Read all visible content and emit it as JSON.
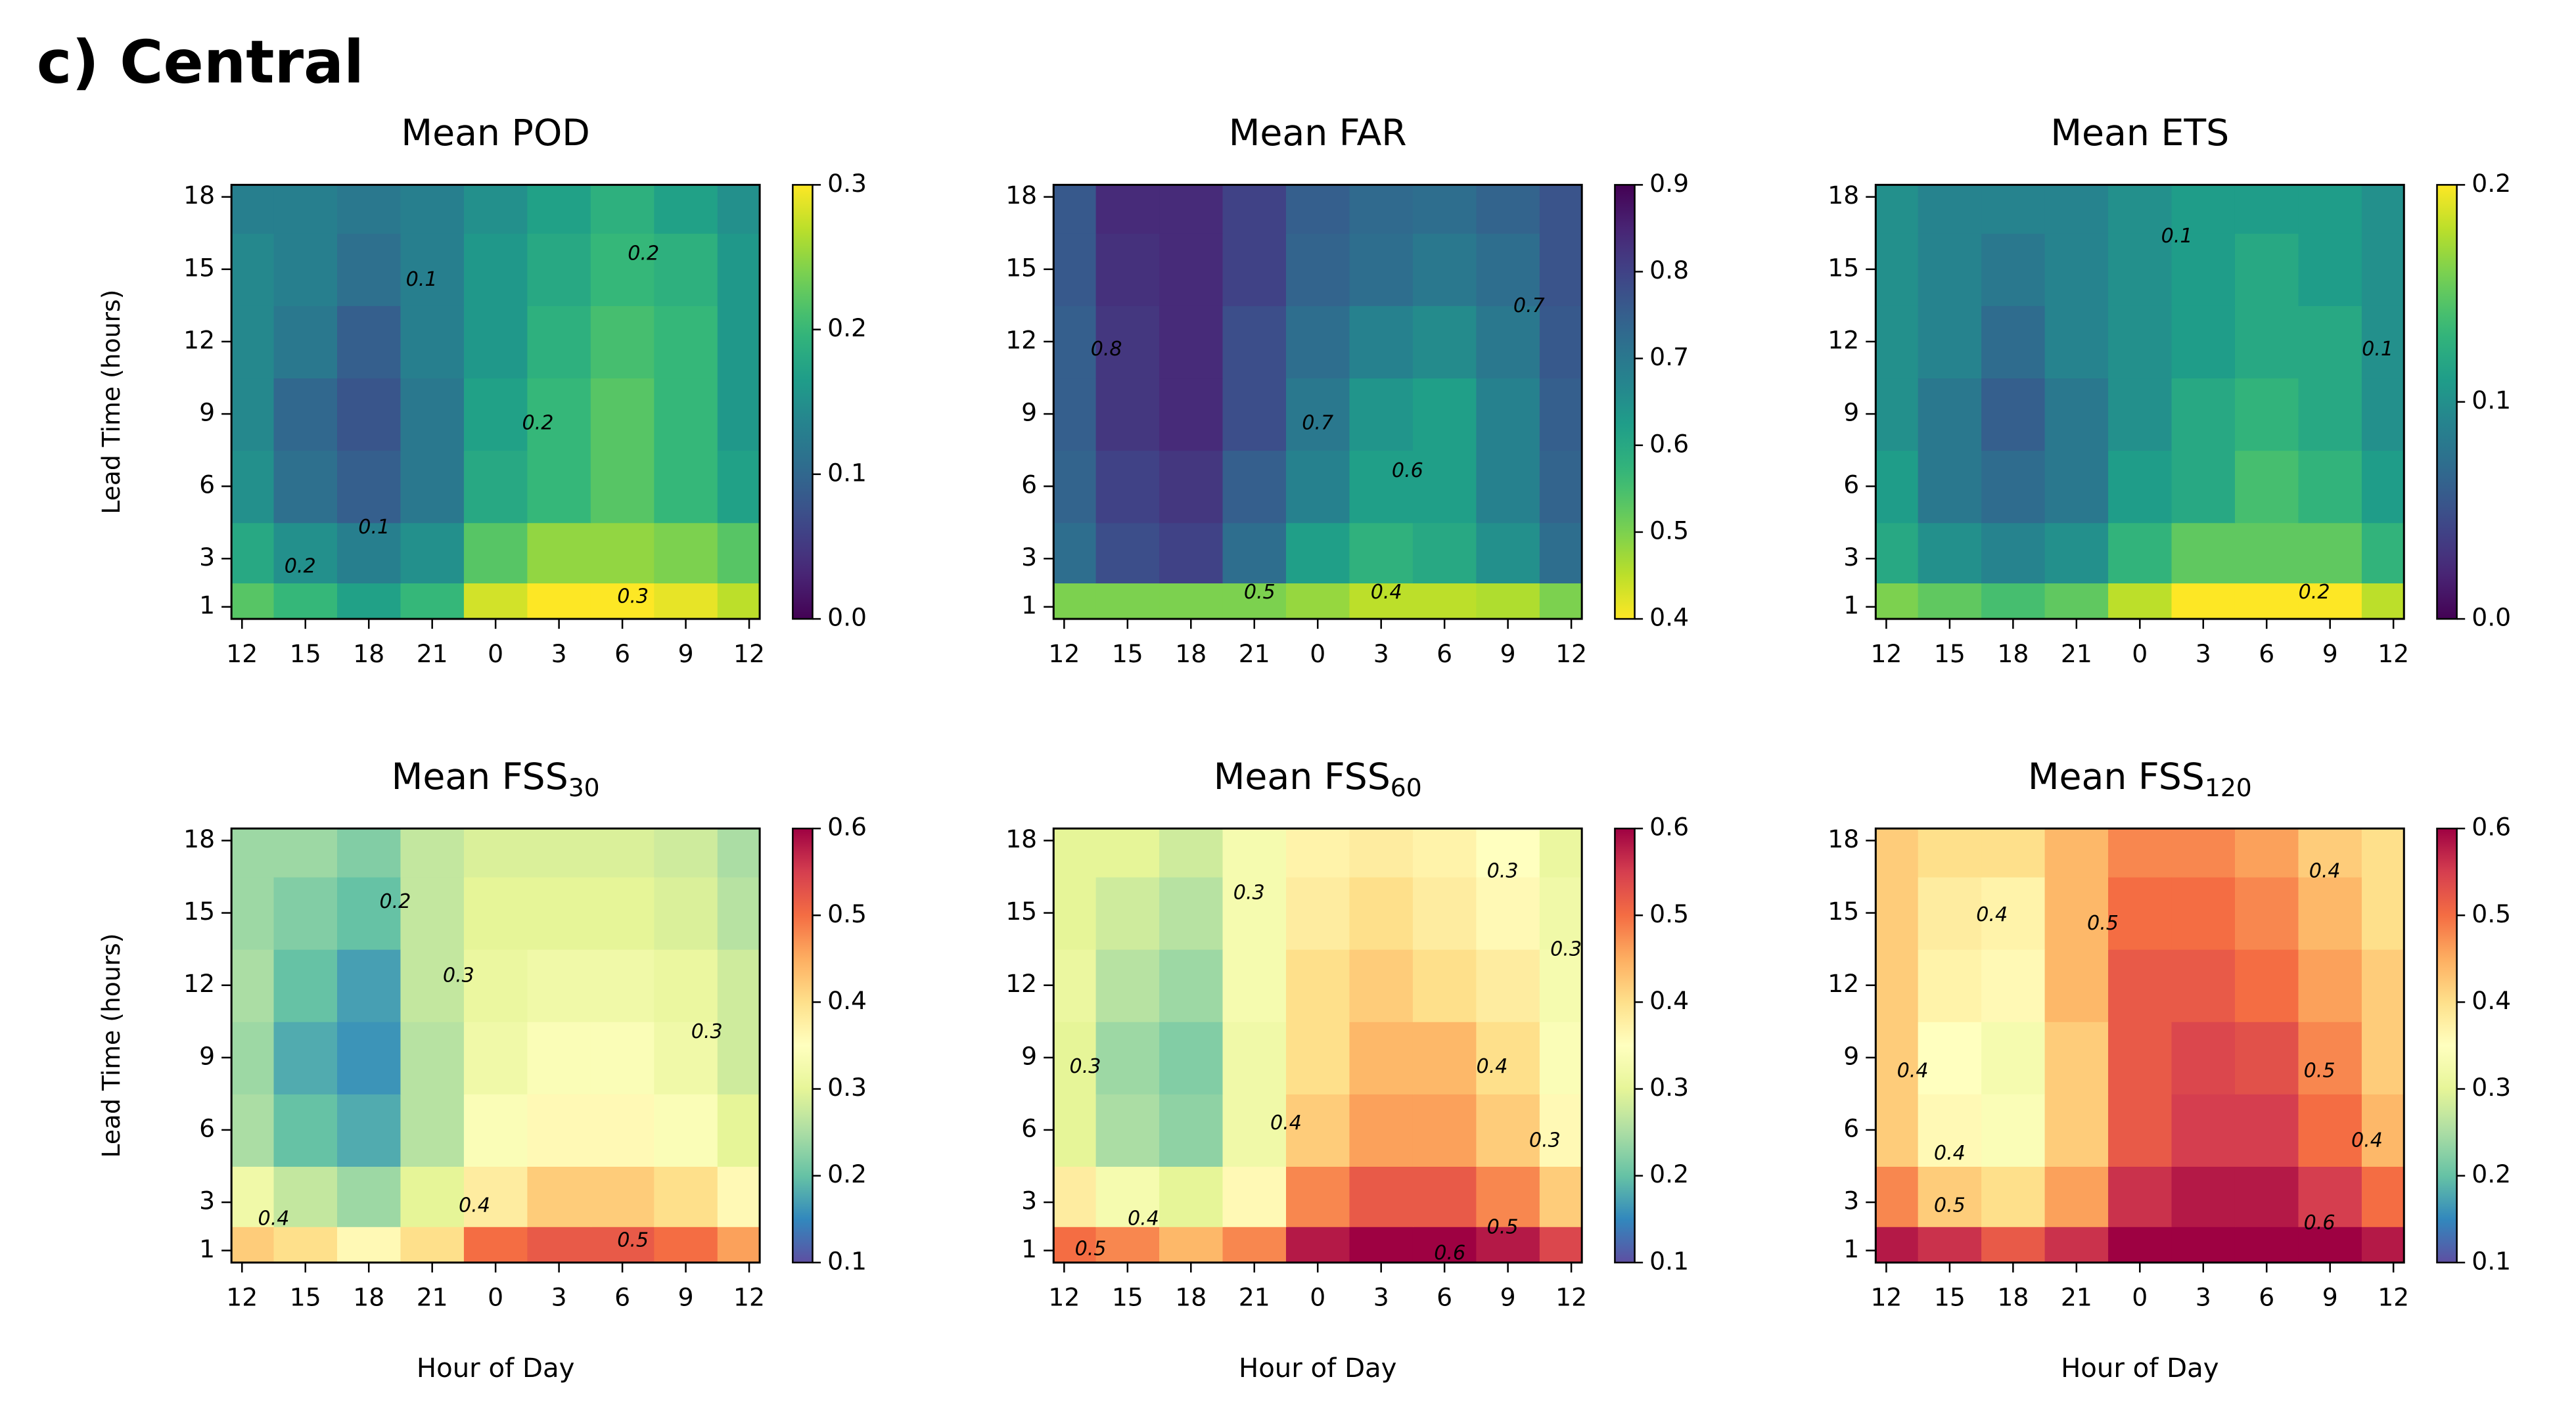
{
  "figure_title": "c) Central",
  "chart_data": [
    {
      "type": "heatmap",
      "title": "Mean POD",
      "ylabel": "Lead Time (hours)",
      "colormap": "viridis",
      "reverse": false,
      "x": [
        0,
        3,
        6,
        9,
        12,
        15,
        18,
        21,
        24
      ],
      "y": [
        1,
        3,
        6,
        9,
        12,
        15,
        18
      ],
      "xlim": [
        -0.5,
        24.5
      ],
      "ylim": [
        0.5,
        18.5
      ],
      "xticks": [
        {
          "value": 0,
          "label": "12"
        },
        {
          "value": 3,
          "label": "15"
        },
        {
          "value": 6,
          "label": "18"
        },
        {
          "value": 9,
          "label": "21"
        },
        {
          "value": 12,
          "label": "0"
        },
        {
          "value": 15,
          "label": "3"
        },
        {
          "value": 18,
          "label": "6"
        },
        {
          "value": 21,
          "label": "9"
        },
        {
          "value": 24,
          "label": "12"
        }
      ],
      "yticks": [
        1,
        3,
        6,
        9,
        12,
        15,
        18
      ],
      "clim": [
        0,
        0.3
      ],
      "cticks": [
        {
          "value": 0,
          "label": "0.0"
        },
        0.1,
        0.2,
        0.3
      ],
      "contour_labels": [
        0.1,
        0.2,
        0.2,
        0.1,
        0.2,
        0.3
      ],
      "z": [
        [
          0.22,
          0.2,
          0.17,
          0.2,
          0.28,
          0.3,
          0.3,
          0.29,
          0.27
        ],
        [
          0.18,
          0.15,
          0.13,
          0.15,
          0.22,
          0.25,
          0.25,
          0.24,
          0.22
        ],
        [
          0.15,
          0.11,
          0.09,
          0.12,
          0.18,
          0.2,
          0.22,
          0.2,
          0.17
        ],
        [
          0.14,
          0.1,
          0.08,
          0.12,
          0.17,
          0.2,
          0.22,
          0.2,
          0.16
        ],
        [
          0.14,
          0.12,
          0.09,
          0.13,
          0.16,
          0.19,
          0.21,
          0.2,
          0.16
        ],
        [
          0.14,
          0.13,
          0.11,
          0.13,
          0.16,
          0.18,
          0.2,
          0.19,
          0.16
        ],
        [
          0.13,
          0.13,
          0.12,
          0.13,
          0.15,
          0.17,
          0.19,
          0.17,
          0.15
        ]
      ]
    },
    {
      "type": "heatmap",
      "title": "Mean FAR",
      "colormap": "viridis",
      "reverse": true,
      "x": [
        0,
        3,
        6,
        9,
        12,
        15,
        18,
        21,
        24
      ],
      "y": [
        1,
        3,
        6,
        9,
        12,
        15,
        18
      ],
      "xlim": [
        -0.5,
        24.5
      ],
      "ylim": [
        0.5,
        18.5
      ],
      "xticks": [
        {
          "value": 0,
          "label": "12"
        },
        {
          "value": 3,
          "label": "15"
        },
        {
          "value": 6,
          "label": "18"
        },
        {
          "value": 9,
          "label": "21"
        },
        {
          "value": 12,
          "label": "0"
        },
        {
          "value": 15,
          "label": "3"
        },
        {
          "value": 18,
          "label": "6"
        },
        {
          "value": 21,
          "label": "9"
        },
        {
          "value": 24,
          "label": "12"
        }
      ],
      "yticks": [
        1,
        3,
        6,
        9,
        12,
        15,
        18
      ],
      "clim": [
        0.4,
        0.9
      ],
      "cticks": [
        0.4,
        0.5,
        0.6,
        0.7,
        0.8,
        0.9
      ],
      "contour_labels": [
        0.8,
        0.7,
        0.6,
        0.7,
        0.5,
        0.4
      ],
      "z": [
        [
          0.5,
          0.5,
          0.5,
          0.5,
          0.48,
          0.45,
          0.45,
          0.46,
          0.5
        ],
        [
          0.72,
          0.78,
          0.8,
          0.72,
          0.62,
          0.58,
          0.6,
          0.65,
          0.72
        ],
        [
          0.74,
          0.8,
          0.82,
          0.75,
          0.68,
          0.62,
          0.62,
          0.68,
          0.74
        ],
        [
          0.75,
          0.82,
          0.84,
          0.78,
          0.7,
          0.64,
          0.62,
          0.68,
          0.75
        ],
        [
          0.75,
          0.82,
          0.84,
          0.78,
          0.72,
          0.68,
          0.66,
          0.7,
          0.76
        ],
        [
          0.76,
          0.83,
          0.84,
          0.8,
          0.74,
          0.72,
          0.7,
          0.72,
          0.77
        ],
        [
          0.76,
          0.84,
          0.84,
          0.8,
          0.75,
          0.73,
          0.72,
          0.74,
          0.77
        ]
      ]
    },
    {
      "type": "heatmap",
      "title": "Mean ETS",
      "colormap": "viridis",
      "reverse": false,
      "x": [
        0,
        3,
        6,
        9,
        12,
        15,
        18,
        21,
        24
      ],
      "y": [
        1,
        3,
        6,
        9,
        12,
        15,
        18
      ],
      "xlim": [
        -0.5,
        24.5
      ],
      "ylim": [
        0.5,
        18.5
      ],
      "xticks": [
        {
          "value": 0,
          "label": "12"
        },
        {
          "value": 3,
          "label": "15"
        },
        {
          "value": 6,
          "label": "18"
        },
        {
          "value": 9,
          "label": "21"
        },
        {
          "value": 12,
          "label": "0"
        },
        {
          "value": 15,
          "label": "3"
        },
        {
          "value": 18,
          "label": "6"
        },
        {
          "value": 21,
          "label": "9"
        },
        {
          "value": 24,
          "label": "12"
        }
      ],
      "yticks": [
        1,
        3,
        6,
        9,
        12,
        15,
        18
      ],
      "clim": [
        0,
        0.2
      ],
      "cticks": [
        {
          "value": 0,
          "label": "0.0"
        },
        0.1,
        0.2
      ],
      "contour_labels": [
        0.1,
        0.1,
        0.2
      ],
      "z": [
        [
          0.16,
          0.15,
          0.14,
          0.15,
          0.18,
          0.2,
          0.2,
          0.2,
          0.18
        ],
        [
          0.12,
          0.1,
          0.09,
          0.1,
          0.13,
          0.15,
          0.15,
          0.15,
          0.13
        ],
        [
          0.11,
          0.08,
          0.07,
          0.08,
          0.11,
          0.12,
          0.14,
          0.13,
          0.11
        ],
        [
          0.1,
          0.08,
          0.06,
          0.08,
          0.1,
          0.12,
          0.13,
          0.12,
          0.1
        ],
        [
          0.1,
          0.09,
          0.07,
          0.09,
          0.1,
          0.11,
          0.12,
          0.12,
          0.1
        ],
        [
          0.1,
          0.09,
          0.08,
          0.09,
          0.1,
          0.11,
          0.12,
          0.11,
          0.1
        ],
        [
          0.1,
          0.09,
          0.09,
          0.09,
          0.1,
          0.11,
          0.11,
          0.11,
          0.1
        ]
      ]
    },
    {
      "type": "heatmap",
      "title": "Mean FSS",
      "title_sub": "30",
      "ylabel": "Lead Time (hours)",
      "xlabel": "Hour of Day",
      "colormap": "Spectral",
      "reverse": true,
      "x": [
        0,
        3,
        6,
        9,
        12,
        15,
        18,
        21,
        24
      ],
      "y": [
        1,
        3,
        6,
        9,
        12,
        15,
        18
      ],
      "xlim": [
        -0.5,
        24.5
      ],
      "ylim": [
        0.5,
        18.5
      ],
      "xticks": [
        {
          "value": 0,
          "label": "12"
        },
        {
          "value": 3,
          "label": "15"
        },
        {
          "value": 6,
          "label": "18"
        },
        {
          "value": 9,
          "label": "21"
        },
        {
          "value": 12,
          "label": "0"
        },
        {
          "value": 15,
          "label": "3"
        },
        {
          "value": 18,
          "label": "6"
        },
        {
          "value": 21,
          "label": "9"
        },
        {
          "value": 24,
          "label": "12"
        }
      ],
      "yticks": [
        1,
        3,
        6,
        9,
        12,
        15,
        18
      ],
      "clim": [
        0.1,
        0.6
      ],
      "cticks": [
        0.1,
        0.2,
        0.3,
        0.4,
        0.5,
        0.6
      ],
      "contour_labels": [
        0.2,
        0.3,
        0.3,
        0.4,
        0.4,
        0.5
      ],
      "z": [
        [
          0.42,
          0.4,
          0.36,
          0.4,
          0.5,
          0.52,
          0.52,
          0.5,
          0.46
        ],
        [
          0.32,
          0.27,
          0.24,
          0.3,
          0.38,
          0.42,
          0.42,
          0.4,
          0.36
        ],
        [
          0.25,
          0.2,
          0.18,
          0.26,
          0.34,
          0.36,
          0.36,
          0.34,
          0.3
        ],
        [
          0.24,
          0.18,
          0.16,
          0.26,
          0.32,
          0.34,
          0.34,
          0.32,
          0.28
        ],
        [
          0.25,
          0.2,
          0.17,
          0.27,
          0.31,
          0.32,
          0.32,
          0.31,
          0.28
        ],
        [
          0.24,
          0.22,
          0.2,
          0.27,
          0.3,
          0.3,
          0.3,
          0.29,
          0.26
        ],
        [
          0.24,
          0.24,
          0.22,
          0.27,
          0.29,
          0.29,
          0.29,
          0.28,
          0.25
        ]
      ]
    },
    {
      "type": "heatmap",
      "title": "Mean FSS",
      "title_sub": "60",
      "xlabel": "Hour of Day",
      "colormap": "Spectral",
      "reverse": true,
      "x": [
        0,
        3,
        6,
        9,
        12,
        15,
        18,
        21,
        24
      ],
      "y": [
        1,
        3,
        6,
        9,
        12,
        15,
        18
      ],
      "xlim": [
        -0.5,
        24.5
      ],
      "ylim": [
        0.5,
        18.5
      ],
      "xticks": [
        {
          "value": 0,
          "label": "12"
        },
        {
          "value": 3,
          "label": "15"
        },
        {
          "value": 6,
          "label": "18"
        },
        {
          "value": 9,
          "label": "21"
        },
        {
          "value": 12,
          "label": "0"
        },
        {
          "value": 15,
          "label": "3"
        },
        {
          "value": 18,
          "label": "6"
        },
        {
          "value": 21,
          "label": "9"
        },
        {
          "value": 24,
          "label": "12"
        }
      ],
      "yticks": [
        1,
        3,
        6,
        9,
        12,
        15,
        18
      ],
      "clim": [
        0.1,
        0.6
      ],
      "cticks": [
        0.1,
        0.2,
        0.3,
        0.4,
        0.5,
        0.6
      ],
      "contour_labels": [
        0.3,
        0.3,
        0.3,
        0.3,
        0.4,
        0.4,
        0.3,
        0.5,
        0.4,
        0.5,
        0.6
      ],
      "z": [
        [
          0.5,
          0.48,
          0.44,
          0.48,
          0.58,
          0.6,
          0.6,
          0.58,
          0.54
        ],
        [
          0.38,
          0.33,
          0.3,
          0.36,
          0.48,
          0.52,
          0.52,
          0.48,
          0.42
        ],
        [
          0.3,
          0.25,
          0.23,
          0.32,
          0.42,
          0.46,
          0.46,
          0.42,
          0.36
        ],
        [
          0.3,
          0.24,
          0.22,
          0.32,
          0.4,
          0.44,
          0.44,
          0.4,
          0.34
        ],
        [
          0.31,
          0.26,
          0.24,
          0.33,
          0.4,
          0.42,
          0.4,
          0.38,
          0.33
        ],
        [
          0.3,
          0.28,
          0.26,
          0.33,
          0.38,
          0.4,
          0.38,
          0.36,
          0.32
        ],
        [
          0.3,
          0.3,
          0.28,
          0.33,
          0.37,
          0.38,
          0.37,
          0.35,
          0.31
        ]
      ]
    },
    {
      "type": "heatmap",
      "title": "Mean FSS",
      "title_sub": "120",
      "xlabel": "Hour of Day",
      "colormap": "Spectral",
      "reverse": true,
      "x": [
        0,
        3,
        6,
        9,
        12,
        15,
        18,
        21,
        24
      ],
      "y": [
        1,
        3,
        6,
        9,
        12,
        15,
        18
      ],
      "xlim": [
        -0.5,
        24.5
      ],
      "ylim": [
        0.5,
        18.5
      ],
      "xticks": [
        {
          "value": 0,
          "label": "12"
        },
        {
          "value": 3,
          "label": "15"
        },
        {
          "value": 6,
          "label": "18"
        },
        {
          "value": 9,
          "label": "21"
        },
        {
          "value": 12,
          "label": "0"
        },
        {
          "value": 15,
          "label": "3"
        },
        {
          "value": 18,
          "label": "6"
        },
        {
          "value": 21,
          "label": "9"
        },
        {
          "value": 24,
          "label": "12"
        }
      ],
      "yticks": [
        1,
        3,
        6,
        9,
        12,
        15,
        18
      ],
      "clim": [
        0.1,
        0.6
      ],
      "cticks": [
        0.1,
        0.2,
        0.3,
        0.4,
        0.5,
        0.6
      ],
      "contour_labels": [
        0.4,
        0.5,
        0.4,
        0.4,
        0.5,
        0.4,
        0.4,
        0.5,
        0.6
      ],
      "z": [
        [
          0.58,
          0.56,
          0.52,
          0.56,
          0.62,
          0.62,
          0.62,
          0.6,
          0.58
        ],
        [
          0.48,
          0.42,
          0.4,
          0.46,
          0.56,
          0.58,
          0.58,
          0.55,
          0.5
        ],
        [
          0.42,
          0.36,
          0.34,
          0.42,
          0.52,
          0.55,
          0.55,
          0.5,
          0.44
        ],
        [
          0.42,
          0.35,
          0.33,
          0.42,
          0.52,
          0.54,
          0.53,
          0.48,
          0.42
        ],
        [
          0.42,
          0.37,
          0.36,
          0.44,
          0.52,
          0.52,
          0.5,
          0.46,
          0.42
        ],
        [
          0.42,
          0.38,
          0.37,
          0.44,
          0.5,
          0.5,
          0.48,
          0.44,
          0.4
        ],
        [
          0.42,
          0.4,
          0.4,
          0.44,
          0.48,
          0.48,
          0.46,
          0.42,
          0.4
        ]
      ]
    }
  ]
}
